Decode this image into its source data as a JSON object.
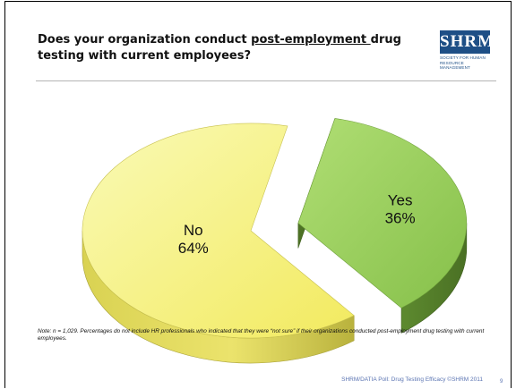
{
  "slide": {
    "title_part1": "Does your organization conduct ",
    "title_underlined": "post-employment ",
    "title_part2": "drug testing with current employees?",
    "logo_text": "SHRM",
    "logo_subtext_line1": "SOCIETY FOR HUMAN",
    "logo_subtext_line2": "RESOURCE MANAGEMENT",
    "note": "Note: n = 1,029. Percentages do not include HR professionals who indicated that they were “not sure” if their organizations conducted post-employment drug testing with current employees.",
    "footer": "SHRM/DATIA Poll: Drug Testing Efficacy ©SHRM 2011",
    "page_number": "9"
  },
  "chart_data": {
    "type": "pie",
    "title": "",
    "categories": [
      "Yes",
      "No"
    ],
    "values": [
      36,
      64
    ],
    "labels": [
      "36%",
      "64%"
    ],
    "colors": {
      "Yes": "#9bd259",
      "No": "#f7f07a"
    },
    "exploded": "Yes",
    "style": "3d"
  }
}
